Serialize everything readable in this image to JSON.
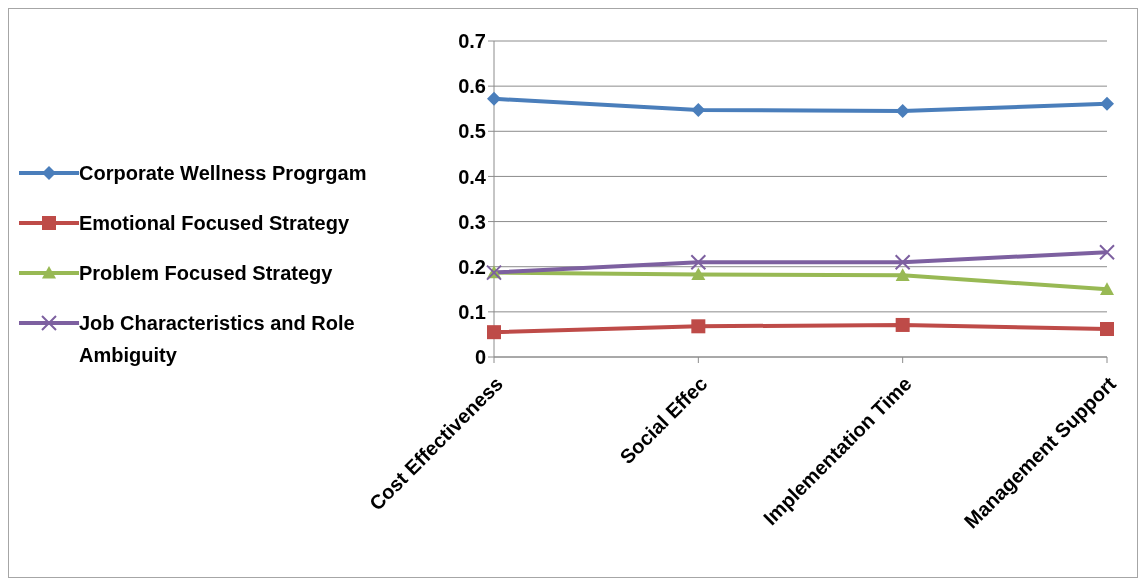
{
  "chart_data": {
    "type": "line",
    "categories": [
      "Cost Effectiveness",
      "Social Effec",
      "Implementation Time",
      "Management Support"
    ],
    "series": [
      {
        "name": "Corporate Wellness Progrgam",
        "color": "#4a7ebb",
        "marker": "diamond",
        "values": [
          0.572,
          0.547,
          0.545,
          0.561
        ]
      },
      {
        "name": "Emotional Focused Strategy",
        "color": "#be4b48",
        "marker": "square",
        "values": [
          0.055,
          0.068,
          0.071,
          0.062
        ]
      },
      {
        "name": "Problem Focused Strategy",
        "color": "#98b954",
        "marker": "triangle",
        "values": [
          0.187,
          0.183,
          0.181,
          0.15
        ]
      },
      {
        "name": "Job Characteristics and Role Ambiguity",
        "color": "#7d60a0",
        "marker": "cross",
        "values": [
          0.187,
          0.21,
          0.21,
          0.232
        ]
      }
    ],
    "ylim": [
      0,
      0.7
    ],
    "yticks": [
      0,
      0.1,
      0.2,
      0.3,
      0.4,
      0.5,
      0.6,
      0.7
    ],
    "grid": "y",
    "legend": "left"
  }
}
